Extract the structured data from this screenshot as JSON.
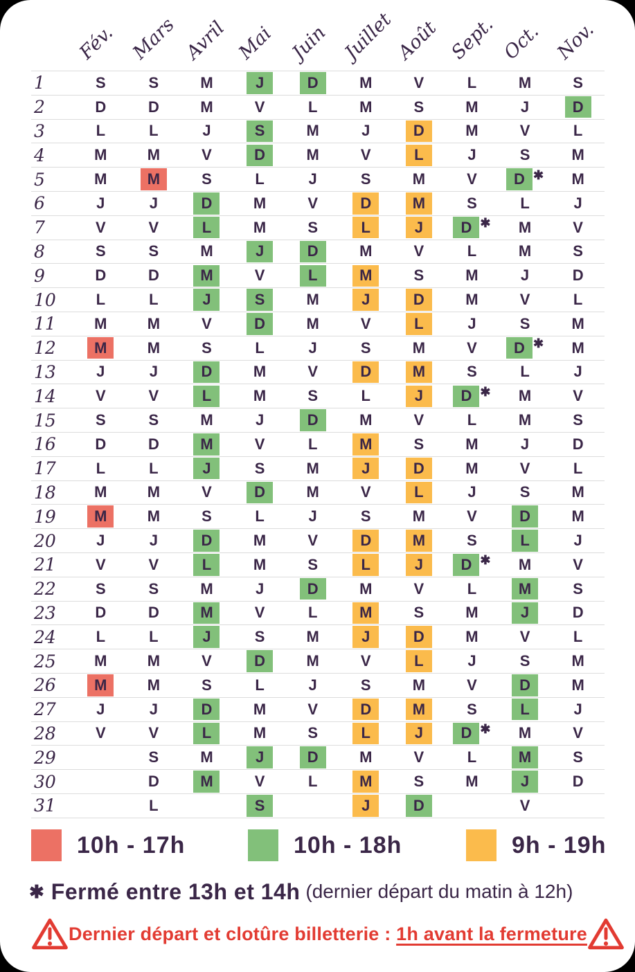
{
  "colors": {
    "ink": "#3a2647",
    "red": "#ec7164",
    "green": "#82c07a",
    "yellow": "#fbbb4c",
    "warning_red": "#e23b32",
    "gridline": "#dcdcdc"
  },
  "header": {
    "months": [
      "Fév.",
      "Mars",
      "Avril",
      "Mai",
      "Juin",
      "Juillet",
      "Août",
      "Sept.",
      "Oct.",
      "Nov."
    ]
  },
  "cell_format": "day letter, optional highlight suffix .r=10h-17h .g=10h-18h .y=9h-19h, optional * = fermé 13h-14h",
  "calendar": {
    "rows": [
      {
        "day": "1",
        "cells": [
          "S",
          "S",
          "M",
          "J.g",
          "D.g",
          "M",
          "V",
          "L",
          "M",
          "S"
        ]
      },
      {
        "day": "2",
        "cells": [
          "D",
          "D",
          "M",
          "V",
          "L",
          "M",
          "S",
          "M",
          "J",
          "D.g"
        ]
      },
      {
        "day": "3",
        "cells": [
          "L",
          "L",
          "J",
          "S.g",
          "M",
          "J",
          "D.y",
          "M",
          "V",
          "L"
        ]
      },
      {
        "day": "4",
        "cells": [
          "M",
          "M",
          "V",
          "D.g",
          "M",
          "V",
          "L.y",
          "J",
          "S",
          "M"
        ]
      },
      {
        "day": "5",
        "cells": [
          "M",
          "M.r",
          "S",
          "L",
          "J",
          "S",
          "M",
          "V",
          "D.g*",
          "M"
        ]
      },
      {
        "day": "6",
        "cells": [
          "J",
          "J",
          "D.g",
          "M",
          "V",
          "D.y",
          "M.y",
          "S",
          "L",
          "J"
        ]
      },
      {
        "day": "7",
        "cells": [
          "V",
          "V",
          "L.g",
          "M",
          "S",
          "L.y",
          "J.y",
          "D.g*",
          "M",
          "V"
        ]
      },
      {
        "day": "8",
        "cells": [
          "S",
          "S",
          "M",
          "J.g",
          "D.g",
          "M",
          "V",
          "L",
          "M",
          "S"
        ]
      },
      {
        "day": "9",
        "cells": [
          "D",
          "D",
          "M.g",
          "V",
          "L.g",
          "M.y",
          "S",
          "M",
          "J",
          "D"
        ]
      },
      {
        "day": "10",
        "cells": [
          "L",
          "L",
          "J.g",
          "S.g",
          "M",
          "J.y",
          "D.y",
          "M",
          "V",
          "L"
        ]
      },
      {
        "day": "11",
        "cells": [
          "M",
          "M",
          "V",
          "D.g",
          "M",
          "V",
          "L.y",
          "J",
          "S",
          "M"
        ]
      },
      {
        "day": "12",
        "cells": [
          "M.r",
          "M",
          "S",
          "L",
          "J",
          "S",
          "M",
          "V",
          "D.g*",
          "M"
        ]
      },
      {
        "day": "13",
        "cells": [
          "J",
          "J",
          "D.g",
          "M",
          "V",
          "D.y",
          "M.y",
          "S",
          "L",
          "J"
        ]
      },
      {
        "day": "14",
        "cells": [
          "V",
          "V",
          "L.g",
          "M",
          "S",
          "L",
          "J.y",
          "D.g*",
          "M",
          "V"
        ]
      },
      {
        "day": "15",
        "cells": [
          "S",
          "S",
          "M",
          "J",
          "D.g",
          "M",
          "V",
          "L",
          "M",
          "S"
        ]
      },
      {
        "day": "16",
        "cells": [
          "D",
          "D",
          "M.g",
          "V",
          "L",
          "M.y",
          "S",
          "M",
          "J",
          "D"
        ]
      },
      {
        "day": "17",
        "cells": [
          "L",
          "L",
          "J.g",
          "S",
          "M",
          "J.y",
          "D.y",
          "M",
          "V",
          "L"
        ]
      },
      {
        "day": "18",
        "cells": [
          "M",
          "M",
          "V",
          "D.g",
          "M",
          "V",
          "L.y",
          "J",
          "S",
          "M"
        ]
      },
      {
        "day": "19",
        "cells": [
          "M.r",
          "M",
          "S",
          "L",
          "J",
          "S",
          "M",
          "V",
          "D.g",
          "M"
        ]
      },
      {
        "day": "20",
        "cells": [
          "J",
          "J",
          "D.g",
          "M",
          "V",
          "D.y",
          "M.y",
          "S",
          "L.g",
          "J"
        ]
      },
      {
        "day": "21",
        "cells": [
          "V",
          "V",
          "L.g",
          "M",
          "S",
          "L.y",
          "J.y",
          "D.g*",
          "M",
          "V"
        ]
      },
      {
        "day": "22",
        "cells": [
          "S",
          "S",
          "M",
          "J",
          "D.g",
          "M",
          "V",
          "L",
          "M.g",
          "S"
        ]
      },
      {
        "day": "23",
        "cells": [
          "D",
          "D",
          "M.g",
          "V",
          "L",
          "M.y",
          "S",
          "M",
          "J.g",
          "D"
        ]
      },
      {
        "day": "24",
        "cells": [
          "L",
          "L",
          "J.g",
          "S",
          "M",
          "J.y",
          "D.y",
          "M",
          "V",
          "L"
        ]
      },
      {
        "day": "25",
        "cells": [
          "M",
          "M",
          "V",
          "D.g",
          "M",
          "V",
          "L.y",
          "J",
          "S",
          "M"
        ]
      },
      {
        "day": "26",
        "cells": [
          "M.r",
          "M",
          "S",
          "L",
          "J",
          "S",
          "M",
          "V",
          "D.g",
          "M"
        ]
      },
      {
        "day": "27",
        "cells": [
          "J",
          "J",
          "D.g",
          "M",
          "V",
          "D.y",
          "M.y",
          "S",
          "L.g",
          "J"
        ]
      },
      {
        "day": "28",
        "cells": [
          "V",
          "V",
          "L.g",
          "M",
          "S",
          "L.y",
          "J.y",
          "D.g*",
          "M",
          "V"
        ]
      },
      {
        "day": "29",
        "cells": [
          "",
          "S",
          "M",
          "J.g",
          "D.g",
          "M",
          "V",
          "L",
          "M.g",
          "S"
        ]
      },
      {
        "day": "30",
        "cells": [
          "",
          "D",
          "M.g",
          "V",
          "L",
          "M.y",
          "S",
          "M",
          "J.g",
          "D"
        ]
      },
      {
        "day": "31",
        "cells": [
          "",
          "L",
          "",
          "S.g",
          "",
          "J.y",
          "D.g",
          "",
          "V",
          ""
        ]
      }
    ]
  },
  "legend": {
    "items": [
      {
        "key": "red",
        "label": "10h - 17h"
      },
      {
        "key": "green",
        "label": "10h - 18h"
      },
      {
        "key": "yellow",
        "label": "9h - 19h"
      }
    ]
  },
  "footnote": {
    "asterisk": "✱",
    "text": "Fermé entre 13h et  14h",
    "parenthetical": "(dernier départ du matin à 12h)"
  },
  "warning": {
    "text": "Dernier départ et clotûre billetterie : ",
    "underlined": "1h avant la fermeture"
  }
}
